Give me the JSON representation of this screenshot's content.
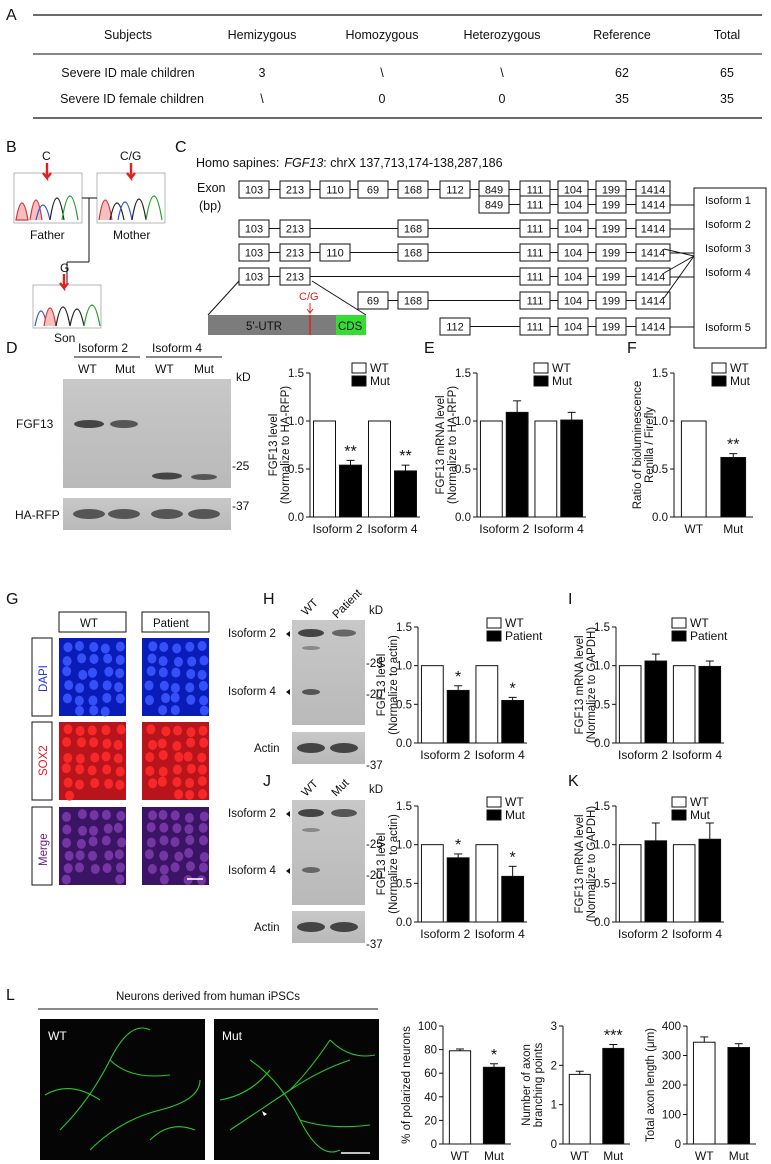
{
  "panel_labels": [
    "A",
    "B",
    "C",
    "D",
    "E",
    "F",
    "G",
    "H",
    "I",
    "J",
    "K",
    "L"
  ],
  "table_a": {
    "headers": [
      "Subjects",
      "Hemizygous",
      "Homozygous",
      "Heterozygous",
      "Reference",
      "Total"
    ],
    "rows": [
      [
        "Severe ID male children",
        "3",
        "\\",
        "\\",
        "62",
        "65"
      ],
      [
        "Severe ID female children",
        "\\",
        "0",
        "0",
        "35",
        "35"
      ]
    ]
  },
  "panel_b": {
    "father_allele": "C",
    "mother_allele": "C/G",
    "son_allele": "G",
    "father": "Father",
    "mother": "Mother",
    "son": "Son"
  },
  "panel_c": {
    "title_prefix": "Homo sapines:",
    "gene": "FGF13",
    "coords": ": chrX 137,713,174-138,287,186",
    "exon_label": "Exon",
    "bp_label": "(bp)",
    "exons": [
      "103",
      "213",
      "110",
      "69",
      "168",
      "112",
      "849",
      "111",
      "104",
      "199",
      "1414"
    ],
    "isoform1": [
      "849",
      "111",
      "104",
      "199",
      "1414"
    ],
    "isoform2": [
      "103",
      "213",
      "168",
      "111",
      "104",
      "199",
      "1414"
    ],
    "isoform3": [
      "103",
      "213",
      "110",
      "168",
      "111",
      "104",
      "199",
      "1414"
    ],
    "isoform4": [
      "103",
      "213",
      "111",
      "104",
      "199",
      "1414"
    ],
    "isoform_69": [
      "69",
      "168",
      "111",
      "104",
      "199",
      "1414"
    ],
    "isoform5": [
      "112",
      "111",
      "104",
      "199",
      "1414"
    ],
    "isoform_names": [
      "Isoform 1",
      "Isoform 2",
      "Isoform 3",
      "Isoform 4",
      "Isoform 5"
    ],
    "utr": "5'-UTR",
    "cds": "CDS",
    "mutation": "C/G"
  },
  "panel_d_blot": {
    "iso2": "Isoform 2",
    "iso4": "Isoform 4",
    "wt": "WT",
    "mut": "Mut",
    "kd": "kD",
    "m25": "-25",
    "m37": "-37",
    "fgf13": "FGF13",
    "harfp": "HA-RFP"
  },
  "panel_g": {
    "wt": "WT",
    "patient": "Patient",
    "dapi": "DAPI",
    "sox2": "SOX2",
    "merge": "Merge"
  },
  "panel_h_blot": {
    "wt": "WT",
    "patient": "Patient",
    "kd": "kD",
    "iso2": "Isoform 2",
    "iso4": "Isoform 4",
    "m25": "-25",
    "m20": "-20",
    "actin": "Actin",
    "m37": "-37"
  },
  "panel_j_blot": {
    "wt": "WT",
    "mut": "Mut",
    "kd": "kD",
    "iso2": "Isoform 2",
    "iso4": "Isoform 4",
    "m25": "-25",
    "m20": "-20",
    "actin": "Actin",
    "m37": "-37"
  },
  "panel_l": {
    "title": "Neurons derived from human iPSCs",
    "wt": "WT",
    "mut": "Mut"
  },
  "chart_data": [
    {
      "panel": "D",
      "type": "bar",
      "ylabel": "FGF13 level",
      "ylabel2": "(Normalize to HA-RFP)",
      "categories": [
        "Isoform 2",
        "Isoform 4"
      ],
      "series": [
        {
          "name": "WT",
          "values": [
            1.0,
            1.0
          ],
          "errors": [
            0,
            0
          ]
        },
        {
          "name": "Mut",
          "values": [
            0.54,
            0.48
          ],
          "errors": [
            0.05,
            0.06
          ]
        }
      ],
      "ylim": [
        0,
        1.5
      ],
      "ticks": [
        "0.0",
        "0.5",
        "1.0",
        "1.5"
      ],
      "sig": [
        "**",
        "**"
      ]
    },
    {
      "panel": "E",
      "type": "bar",
      "ylabel": "FGF13 mRNA level",
      "ylabel2": "(Normalize to HA-RFP)",
      "categories": [
        "Isoform 2",
        "Isoform 4"
      ],
      "series": [
        {
          "name": "WT",
          "values": [
            1.0,
            1.0
          ],
          "errors": [
            0,
            0
          ]
        },
        {
          "name": "Mut",
          "values": [
            1.09,
            1.01
          ],
          "errors": [
            0.12,
            0.08
          ]
        }
      ],
      "ylim": [
        0,
        1.5
      ],
      "ticks": [
        "0.0",
        "0.5",
        "1.0",
        "1.5"
      ],
      "sig": [
        "",
        ""
      ]
    },
    {
      "panel": "F",
      "type": "bar",
      "ylabel": "Ratio of bioluminescence",
      "ylabel2": "Renilla / Firefly",
      "categories": [
        "WT",
        "Mut"
      ],
      "series": [
        {
          "name": "WT",
          "values": [
            1.0,
            null
          ],
          "errors": [
            0,
            0
          ]
        },
        {
          "name": "Mut",
          "values": [
            null,
            0.62
          ],
          "errors": [
            0,
            0.04
          ]
        }
      ],
      "ylim": [
        0,
        1.5
      ],
      "ticks": [
        "0.0",
        "0.5",
        "1.0",
        "1.5"
      ],
      "sig": [
        "",
        "**"
      ]
    },
    {
      "panel": "H",
      "type": "bar",
      "ylabel": "FGF13 level",
      "ylabel2": "(Normalize to actin)",
      "categories": [
        "Isoform 2",
        "Isoform 4"
      ],
      "series": [
        {
          "name": "WT",
          "values": [
            1.0,
            1.0
          ],
          "errors": [
            0,
            0
          ]
        },
        {
          "name": "Patient",
          "values": [
            0.68,
            0.55
          ],
          "errors": [
            0.06,
            0.04
          ]
        }
      ],
      "ylim": [
        0,
        1.5
      ],
      "ticks": [
        "0.0",
        "0.5",
        "1.0",
        "1.5"
      ],
      "sig": [
        "*",
        "*"
      ]
    },
    {
      "panel": "I",
      "type": "bar",
      "ylabel": "FGF13 mRNA level",
      "ylabel2": "(Normalize to GAPDH)",
      "categories": [
        "Isoform 2",
        "Isoform 4"
      ],
      "series": [
        {
          "name": "WT",
          "values": [
            1.0,
            1.0
          ],
          "errors": [
            0,
            0
          ]
        },
        {
          "name": "Patient",
          "values": [
            1.06,
            0.99
          ],
          "errors": [
            0.09,
            0.07
          ]
        }
      ],
      "ylim": [
        0,
        1.5
      ],
      "ticks": [
        "0.0",
        "0.5",
        "1.0",
        "1.5"
      ],
      "sig": [
        "",
        ""
      ]
    },
    {
      "panel": "J",
      "type": "bar",
      "ylabel": "FGF13 level",
      "ylabel2": "(Normalize to actin)",
      "categories": [
        "Isoform 2",
        "Isoform 4"
      ],
      "series": [
        {
          "name": "WT",
          "values": [
            1.0,
            1.0
          ],
          "errors": [
            0,
            0
          ]
        },
        {
          "name": "Mut",
          "values": [
            0.83,
            0.59
          ],
          "errors": [
            0.05,
            0.13
          ]
        }
      ],
      "ylim": [
        0,
        1.5
      ],
      "ticks": [
        "0.0",
        "0.5",
        "1.0",
        "1.5"
      ],
      "sig": [
        "*",
        "*"
      ]
    },
    {
      "panel": "K",
      "type": "bar",
      "ylabel": "FGF13 mRNA level",
      "ylabel2": "(Normalize to GAPDH)",
      "categories": [
        "Isoform 2",
        "Isoform 4"
      ],
      "series": [
        {
          "name": "WT",
          "values": [
            1.0,
            1.0
          ],
          "errors": [
            0,
            0
          ]
        },
        {
          "name": "Mut",
          "values": [
            1.05,
            1.07
          ],
          "errors": [
            0.23,
            0.21
          ]
        }
      ],
      "ylim": [
        0,
        1.5
      ],
      "ticks": [
        "0.0",
        "0.5",
        "1.0",
        "1.5"
      ],
      "sig": [
        "",
        ""
      ]
    },
    {
      "panel": "L1",
      "type": "bar",
      "ylabel": "% of polarized neurons",
      "ylabel2": "",
      "categories": [
        "WT",
        "Mut"
      ],
      "series": [
        {
          "name": "WT",
          "values": [
            79,
            null
          ],
          "errors": [
            1.5,
            0
          ]
        },
        {
          "name": "Mut",
          "values": [
            null,
            65
          ],
          "errors": [
            0,
            3
          ]
        }
      ],
      "ylim": [
        0,
        100
      ],
      "ticks": [
        "0",
        "20",
        "40",
        "60",
        "80",
        "100"
      ],
      "sig": [
        "",
        "*"
      ]
    },
    {
      "panel": "L2",
      "type": "bar",
      "ylabel": "Number of axon",
      "ylabel2": "branching points",
      "categories": [
        "WT",
        "Mut"
      ],
      "series": [
        {
          "name": "WT",
          "values": [
            1.77,
            null
          ],
          "errors": [
            0.08,
            0
          ]
        },
        {
          "name": "Mut",
          "values": [
            null,
            2.43
          ],
          "errors": [
            0,
            0.1
          ]
        }
      ],
      "ylim": [
        0,
        3
      ],
      "ticks": [
        "0",
        "1",
        "2",
        "3"
      ],
      "sig": [
        "",
        "***"
      ]
    },
    {
      "panel": "L3",
      "type": "bar",
      "ylabel": "Total axon length (μm)",
      "ylabel2": "",
      "categories": [
        "WT",
        "Mut"
      ],
      "series": [
        {
          "name": "WT",
          "values": [
            345,
            null
          ],
          "errors": [
            18,
            0
          ]
        },
        {
          "name": "Mut",
          "values": [
            null,
            327
          ],
          "errors": [
            0,
            13
          ]
        }
      ],
      "ylim": [
        0,
        400
      ],
      "ticks": [
        "0",
        "100",
        "200",
        "300",
        "400"
      ],
      "sig": [
        "",
        ""
      ]
    }
  ]
}
